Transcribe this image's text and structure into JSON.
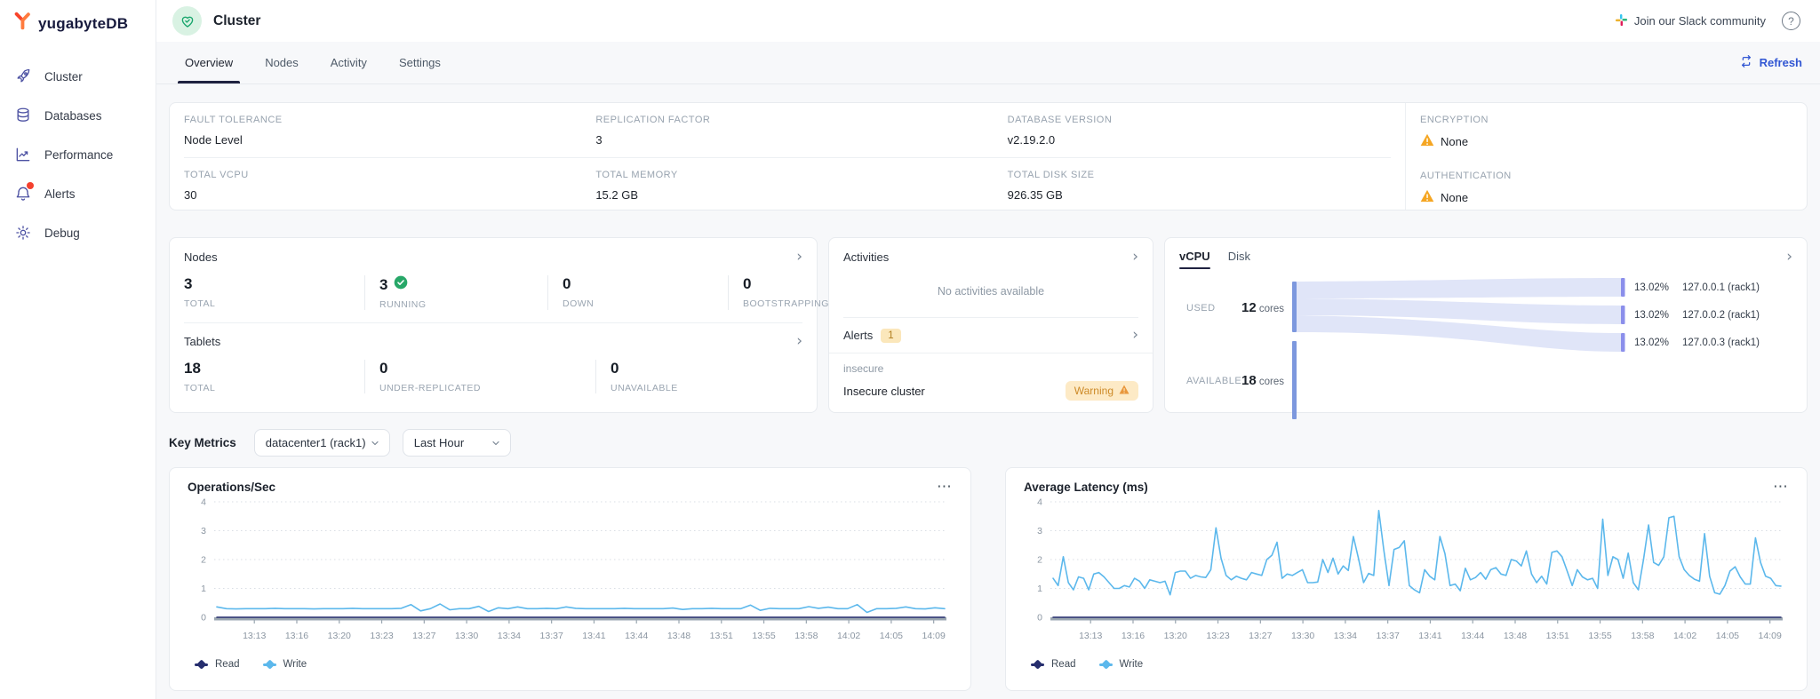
{
  "brand": {
    "logo_text": "yugabyteDB"
  },
  "sidebar": {
    "items": [
      {
        "label": "Cluster"
      },
      {
        "label": "Databases"
      },
      {
        "label": "Performance"
      },
      {
        "label": "Alerts"
      },
      {
        "label": "Debug"
      }
    ]
  },
  "header": {
    "title": "Cluster",
    "slack_label": "Join our Slack community",
    "help_label": "?"
  },
  "tab_bar": {
    "tabs": [
      {
        "label": "Overview",
        "active": true
      },
      {
        "label": "Nodes",
        "active": false
      },
      {
        "label": "Activity",
        "active": false
      },
      {
        "label": "Settings",
        "active": false
      }
    ],
    "refresh_label": "Refresh"
  },
  "summary": {
    "fault_tolerance": {
      "label": "FAULT TOLERANCE",
      "value": "Node Level"
    },
    "replication_factor": {
      "label": "REPLICATION FACTOR",
      "value": "3"
    },
    "database_version": {
      "label": "DATABASE VERSION",
      "value": "v2.19.2.0"
    },
    "total_vcpu": {
      "label": "TOTAL VCPU",
      "value": "30"
    },
    "total_memory": {
      "label": "TOTAL MEMORY",
      "value": "15.2 GB"
    },
    "total_disk": {
      "label": "TOTAL DISK SIZE",
      "value": "926.35 GB"
    },
    "encryption": {
      "label": "ENCRYPTION",
      "value": "None"
    },
    "authentication": {
      "label": "AUTHENTICATION",
      "value": "None"
    }
  },
  "nodes_panel": {
    "title": "Nodes",
    "stats": [
      {
        "value": "3",
        "label": "TOTAL"
      },
      {
        "value": "3",
        "label": "RUNNING"
      },
      {
        "value": "0",
        "label": "DOWN"
      },
      {
        "value": "0",
        "label": "BOOTSTRAPPING"
      }
    ]
  },
  "tablets_panel": {
    "title": "Tablets",
    "stats": [
      {
        "value": "18",
        "label": "TOTAL"
      },
      {
        "value": "0",
        "label": "UNDER-REPLICATED"
      },
      {
        "value": "0",
        "label": "UNAVAILABLE"
      }
    ]
  },
  "activities_panel": {
    "title": "Activities",
    "empty_text": "No activities available"
  },
  "alerts_panel": {
    "title": "Alerts",
    "count": "1",
    "items": [
      {
        "category": "insecure",
        "name": "Insecure cluster",
        "severity": "Warning"
      }
    ]
  },
  "resource_panel": {
    "tabs": [
      {
        "label": "vCPU",
        "active": true
      },
      {
        "label": "Disk",
        "active": false
      }
    ],
    "used": {
      "label": "USED",
      "value": "12",
      "unit": " cores"
    },
    "available": {
      "label": "AVAILABLE",
      "value": "18",
      "unit": " cores"
    },
    "nodes": [
      {
        "pct": "13.02%",
        "name": "127.0.0.1  (rack1)"
      },
      {
        "pct": "13.02%",
        "name": "127.0.0.2  (rack1)"
      },
      {
        "pct": "13.02%",
        "name": "127.0.0.3  (rack1)"
      }
    ]
  },
  "key_metrics": {
    "title": "Key Metrics",
    "region_select": "datacenter1 (rack1)",
    "range_select": "Last Hour"
  },
  "chart_data": [
    {
      "type": "line",
      "title": "Operations/Sec",
      "xlabel": "",
      "ylabel": "",
      "ylim": [
        0,
        4
      ],
      "yticks": [
        0,
        1,
        2,
        3,
        4
      ],
      "grid": "dotted-horizontal",
      "legend_position": "bottom-left",
      "x_ticks": [
        "13:13",
        "13:16",
        "13:20",
        "13:23",
        "13:27",
        "13:30",
        "13:34",
        "13:37",
        "13:41",
        "13:44",
        "13:48",
        "13:51",
        "13:55",
        "13:58",
        "14:02",
        "14:05",
        "14:09"
      ],
      "series": [
        {
          "name": "Read",
          "color": "#262e6e",
          "flat": 0
        },
        {
          "name": "Write",
          "color": "#5cb8ec",
          "values": [
            0.36,
            0.3,
            0.29,
            0.3,
            0.3,
            0.3,
            0.31,
            0.3,
            0.3,
            0.3,
            0.29,
            0.3,
            0.3,
            0.3,
            0.31,
            0.3,
            0.3,
            0.3,
            0.3,
            0.31,
            0.44,
            0.22,
            0.3,
            0.46,
            0.26,
            0.3,
            0.3,
            0.38,
            0.2,
            0.33,
            0.3,
            0.36,
            0.3,
            0.3,
            0.31,
            0.3,
            0.36,
            0.31,
            0.3,
            0.3,
            0.3,
            0.3,
            0.31,
            0.3,
            0.3,
            0.3,
            0.3,
            0.32,
            0.27,
            0.3,
            0.3,
            0.31,
            0.3,
            0.3,
            0.3,
            0.42,
            0.24,
            0.31,
            0.3,
            0.3,
            0.3,
            0.37,
            0.31,
            0.35,
            0.3,
            0.3,
            0.44,
            0.17,
            0.3,
            0.3,
            0.31,
            0.36,
            0.3,
            0.29,
            0.33,
            0.3
          ]
        }
      ]
    },
    {
      "type": "line",
      "title": "Average Latency (ms)",
      "xlabel": "",
      "ylabel": "",
      "ylim": [
        0,
        4
      ],
      "yticks": [
        0,
        1,
        2,
        3,
        4
      ],
      "grid": "dotted-horizontal",
      "legend_position": "bottom-left",
      "x_ticks": [
        "13:13",
        "13:16",
        "13:20",
        "13:23",
        "13:27",
        "13:30",
        "13:34",
        "13:37",
        "13:41",
        "13:44",
        "13:48",
        "13:51",
        "13:55",
        "13:58",
        "14:02",
        "14:05",
        "14:09"
      ],
      "series": [
        {
          "name": "Read",
          "color": "#262e6e",
          "flat": 0
        },
        {
          "name": "Write",
          "color": "#5cb8ec",
          "values": [
            1.35,
            1.1,
            2.1,
            1.2,
            0.95,
            1.4,
            1.35,
            0.95,
            1.5,
            1.55,
            1.4,
            1.2,
            1.0,
            1.0,
            1.1,
            1.05,
            1.35,
            1.25,
            1.0,
            1.3,
            1.25,
            1.2,
            1.25,
            0.78,
            1.55,
            1.6,
            1.6,
            1.35,
            1.45,
            1.4,
            1.38,
            1.65,
            3.1,
            2.05,
            1.45,
            1.3,
            1.42,
            1.35,
            1.3,
            1.55,
            1.5,
            1.45,
            2.0,
            2.15,
            2.6,
            1.35,
            1.5,
            1.45,
            1.55,
            1.65,
            1.2,
            1.2,
            1.22,
            2.0,
            1.55,
            2.05,
            1.5,
            1.78,
            1.62,
            2.8,
            2.05,
            1.2,
            1.52,
            1.45,
            3.7,
            2.3,
            1.1,
            2.35,
            2.42,
            2.65,
            1.1,
            0.95,
            0.85,
            1.65,
            1.42,
            1.3,
            2.8,
            2.2,
            1.1,
            1.15,
            0.92,
            1.7,
            1.3,
            1.38,
            1.55,
            1.32,
            1.65,
            1.72,
            1.5,
            1.45,
            2.0,
            1.95,
            1.78,
            2.3,
            1.5,
            1.2,
            1.42,
            1.15,
            2.25,
            2.3,
            2.1,
            1.6,
            1.1,
            1.65,
            1.4,
            1.3,
            1.35,
            1.0,
            3.4,
            1.45,
            2.1,
            2.0,
            1.35,
            2.22,
            1.2,
            0.95,
            2.0,
            3.2,
            1.9,
            1.8,
            2.1,
            3.45,
            3.5,
            2.1,
            1.65,
            1.45,
            1.32,
            1.25,
            2.9,
            1.42,
            0.85,
            0.8,
            1.1,
            1.6,
            1.75,
            1.4,
            1.15,
            1.15,
            2.75,
            1.9,
            1.42,
            1.35,
            1.1,
            1.08
          ]
        }
      ]
    }
  ],
  "colors": {
    "accent_blue": "#3156d3",
    "brand_orange": "#ff5a33",
    "nav_indigo": "#4c51a2",
    "success_green": "#27a768",
    "success_bg": "#d9f2e3",
    "warning_amber": "#f5a623",
    "warning_bg": "#fdeac6",
    "chart_write": "#5cb8ec",
    "chart_read": "#262e6e",
    "sankey_source": "#7d98de",
    "sankey_target": "#8b8feb",
    "sankey_flow": "#e0e5f8"
  }
}
